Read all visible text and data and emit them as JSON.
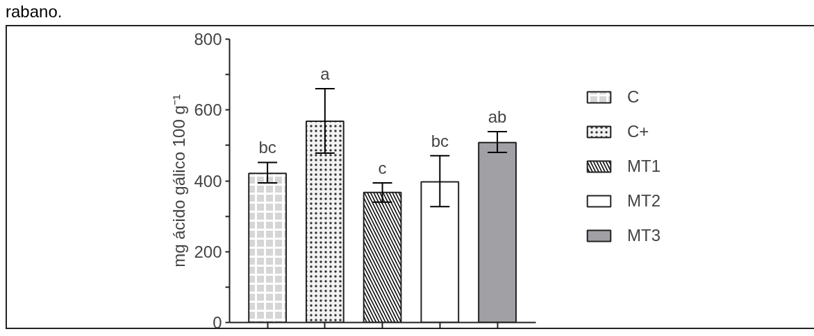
{
  "chart_data": {
    "type": "bar",
    "ylabel": "mg ácido gálico 100 g⁻¹",
    "categories": [
      null,
      null,
      null,
      null,
      null
    ],
    "series": [
      {
        "name": "C",
        "color": "#d6d6d6",
        "values": [
          421,
          null,
          null,
          null,
          null
        ],
        "errors": [
          [
            394,
            452
          ],
          null,
          null,
          null,
          null
        ]
      },
      {
        "name": "C+",
        "color": "#f2f2f2",
        "values": [
          null,
          568,
          null,
          null,
          null
        ],
        "errors": [
          null,
          [
            478,
            660
          ],
          null,
          null,
          null
        ]
      },
      {
        "name": "MT1",
        "color": "#f8f8f8",
        "values": [
          null,
          null,
          367,
          null,
          null
        ],
        "errors": [
          null,
          null,
          [
            340,
            394
          ],
          null,
          null
        ]
      },
      {
        "name": "MT2",
        "color": "#ffffff",
        "values": [
          null,
          null,
          null,
          397,
          null
        ],
        "errors": [
          null,
          null,
          null,
          [
            327,
            471
          ],
          null
        ]
      },
      {
        "name": "MT3",
        "color": "#a1a0a5",
        "values": [
          null,
          null,
          null,
          null,
          508
        ],
        "errors": [
          null,
          null,
          null,
          null,
          [
            480,
            539
          ]
        ]
      }
    ],
    "annotations": [
      "rabano.",
      {
        "text": "bc",
        "y": 452
      },
      {
        "text": "a",
        "y": 660
      },
      {
        "text": "c",
        "y": 394
      },
      {
        "text": "bc",
        "y": 471
      },
      {
        "text": "ab",
        "y": 539
      }
    ],
    "ylim": [
      0,
      800
    ],
    "yticks": [
      0,
      {
        "value": 100,
        "label": null
      },
      200,
      {
        "value": 300,
        "label": null
      },
      400,
      {
        "value": 500,
        "label": null
      },
      600,
      {
        "value": 700,
        "label": null
      },
      800
    ],
    "grid": false,
    "legend": "right"
  }
}
